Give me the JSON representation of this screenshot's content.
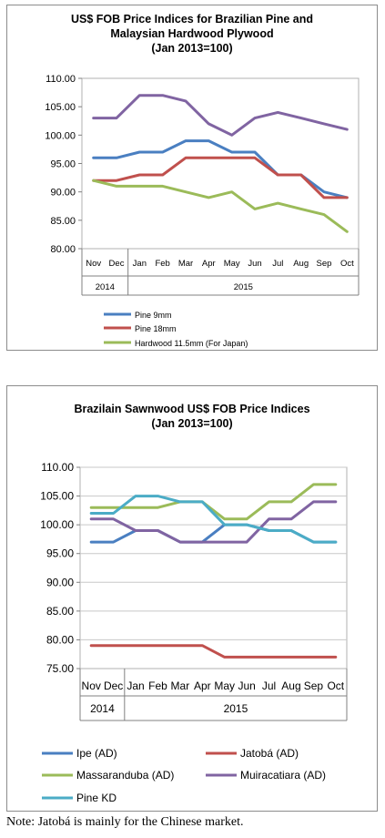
{
  "chart_data": [
    {
      "type": "line",
      "title": [
        "US$ FOB Price Indices for Brazilian Pine and",
        "Malaysian Hardwood Plywood",
        "(Jan 2013=100)"
      ],
      "categories": [
        "Nov",
        "Dec",
        "Jan",
        "Feb",
        "Mar",
        "Apr",
        "May",
        "Jun",
        "Jul",
        "Aug",
        "Sep",
        "Oct"
      ],
      "year_groups": [
        {
          "label": "2014",
          "span": 2
        },
        {
          "label": "2015",
          "span": 10
        }
      ],
      "ylim": [
        80,
        110
      ],
      "yticks": [
        "80.00",
        "85.00",
        "90.00",
        "95.00",
        "100.00",
        "105.00",
        "110.00"
      ],
      "ytick_values": [
        80,
        85,
        90,
        95,
        100,
        105,
        110
      ],
      "grid": false,
      "legend_placement": "bottom",
      "series": [
        {
          "name": "Pine 9mm",
          "color": "#4a7fc1",
          "values": [
            96,
            96,
            97,
            97,
            99,
            99,
            97,
            97,
            93,
            93,
            90,
            89
          ]
        },
        {
          "name": "Pine 18mm",
          "color": "#c0504d",
          "values": [
            92,
            92,
            93,
            93,
            96,
            96,
            96,
            96,
            93,
            93,
            89,
            89
          ]
        },
        {
          "name": "Hardwood 11.5mm (For Japan)",
          "color": "#9bbb59",
          "values": [
            92,
            91,
            91,
            91,
            90,
            89,
            90,
            87,
            88,
            87,
            86,
            83
          ]
        },
        {
          "name": "",
          "color": "#8064a2",
          "values": [
            103,
            103,
            107,
            107,
            106,
            102,
            100,
            103,
            104,
            103,
            102,
            101
          ]
        }
      ]
    },
    {
      "type": "line",
      "title": [
        "Brazilain Sawnwood US$ FOB Price Indices",
        "(Jan 2013=100)"
      ],
      "categories": [
        "Nov",
        "Dec",
        "Jan",
        "Feb",
        "Mar",
        "Apr",
        "May",
        "Jun",
        "Jul",
        "Aug",
        "Sep",
        "Oct"
      ],
      "year_groups": [
        {
          "label": "2014",
          "span": 2
        },
        {
          "label": "2015",
          "span": 10
        }
      ],
      "ylim": [
        75,
        110
      ],
      "yticks": [
        "75.00",
        "80.00",
        "85.00",
        "90.00",
        "95.00",
        "100.00",
        "105.00",
        "110.00"
      ],
      "ytick_values": [
        75,
        80,
        85,
        90,
        95,
        100,
        105,
        110
      ],
      "grid": true,
      "legend_placement": "bottom",
      "series": [
        {
          "name": "Ipe (AD)",
          "color": "#4a7fc1",
          "values": [
            97,
            97,
            99,
            99,
            97,
            97,
            100,
            100,
            99,
            99,
            97,
            97
          ]
        },
        {
          "name": "Jatobá (AD)",
          "color": "#c0504d",
          "values": [
            79,
            79,
            79,
            79,
            79,
            79,
            77,
            77,
            77,
            77,
            77,
            77
          ]
        },
        {
          "name": "Massaranduba (AD)",
          "color": "#9bbb59",
          "values": [
            103,
            103,
            103,
            103,
            104,
            104,
            101,
            101,
            104,
            104,
            107,
            107
          ]
        },
        {
          "name": "Muiracatiara (AD)",
          "color": "#8064a2",
          "values": [
            101,
            101,
            99,
            99,
            97,
            97,
            97,
            97,
            101,
            101,
            104,
            104
          ]
        },
        {
          "name": "Pine KD",
          "color": "#4bacc6",
          "values": [
            102,
            102,
            105,
            105,
            104,
            104,
            100,
            100,
            99,
            99,
            97,
            97
          ]
        }
      ]
    }
  ],
  "note": "Note: Jatobá is mainly for the Chinese market."
}
